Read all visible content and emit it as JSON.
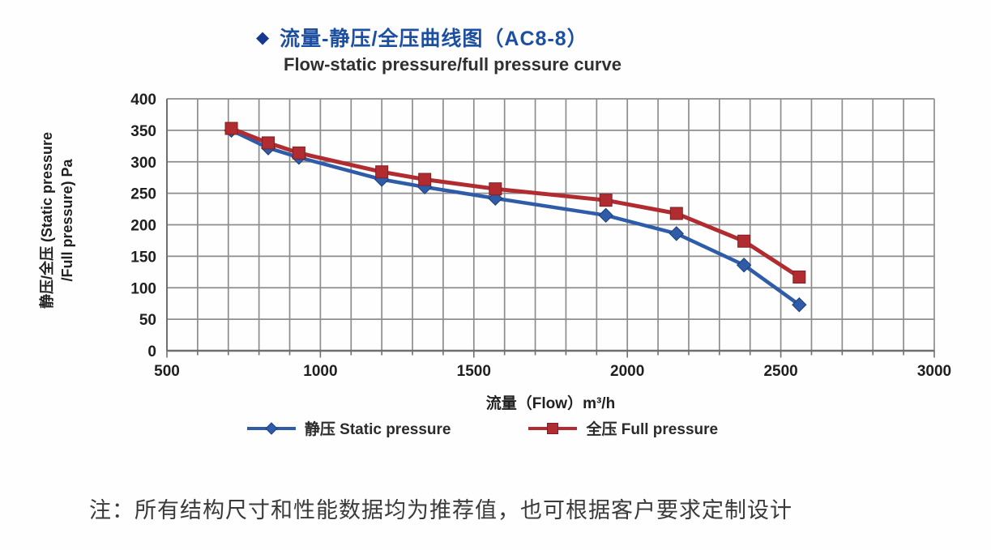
{
  "page": {
    "bullet_icon": "diamond",
    "title_cn": "流量-静压/全压曲线图（AC8-8）",
    "title_en": "Flow-static pressure/full pressure curve",
    "note": "注：所有结构尺寸和性能数据均为推荐值，也可根据客户要求定制设计"
  },
  "colors": {
    "title_blue": "#1d4fa1",
    "bullet_blue": "#16388e",
    "static_blue": "#2e5ca8",
    "full_red": "#b02c30",
    "grid_gray": "#8d8d8d",
    "axis_gray": "#6f6f6f",
    "tick_text": "#1f1f1f"
  },
  "chart_data": {
    "type": "line",
    "title": "流量-静压/全压曲线图（AC8-8）",
    "subtitle": "Flow-static pressure/full pressure curve",
    "xlabel": "流量（Flow）m³/h",
    "ylabel_line1": "静压/全压 (Static pressure",
    "ylabel_line2": "/Full pressure) Pa",
    "xlim": [
      500,
      3000
    ],
    "ylim": [
      0,
      400
    ],
    "x_ticks": [
      500,
      1000,
      1500,
      2000,
      2500,
      3000
    ],
    "y_ticks": [
      0,
      50,
      100,
      150,
      200,
      250,
      300,
      350,
      400
    ],
    "x_minor_grid_step": 100,
    "y_grid_step": 50,
    "grid": "on",
    "legend_position": "bottom",
    "x": [
      710,
      830,
      930,
      1200,
      1340,
      1570,
      1930,
      2160,
      2380,
      2560
    ],
    "series": [
      {
        "name": "静压 Static pressure",
        "marker": "diamond",
        "color": "#2e5ca8",
        "marker_edge": "#1d3f77",
        "values": [
          350,
          322,
          307,
          272,
          260,
          242,
          215,
          186,
          136,
          73
        ]
      },
      {
        "name": "全压 Full pressure",
        "marker": "square",
        "color": "#b02c30",
        "marker_edge": "#7e2023",
        "values": [
          353,
          330,
          314,
          284,
          272,
          257,
          239,
          218,
          174,
          117
        ]
      }
    ]
  }
}
